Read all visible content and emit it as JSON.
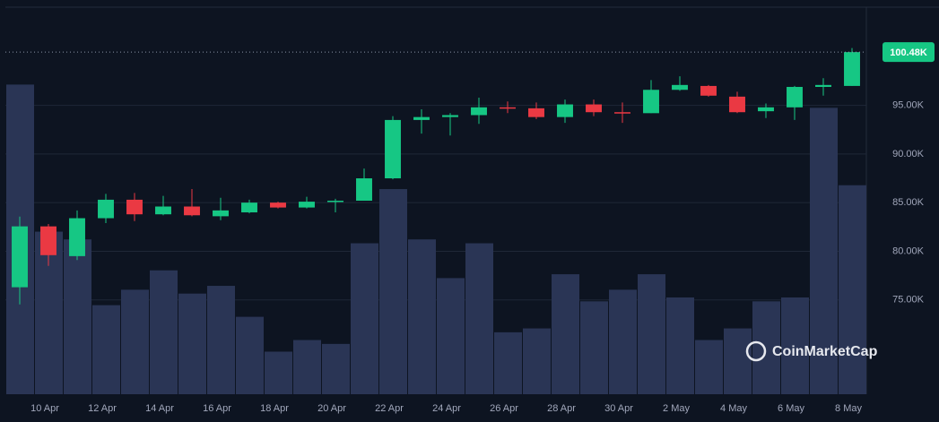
{
  "chart_data": {
    "type": "candlestick",
    "categories": [
      null,
      "10 Apr",
      null,
      "12 Apr",
      null,
      "14 Apr",
      null,
      "16 Apr",
      null,
      "18 Apr",
      null,
      "20 Apr",
      null,
      "22 Apr",
      null,
      "24 Apr",
      null,
      "26 Apr",
      null,
      "28 Apr",
      null,
      "30 Apr",
      null,
      "2 May",
      null,
      "4 May",
      null,
      "6 May",
      null,
      "8 May"
    ],
    "open": [
      76.3,
      82.56,
      79.5,
      83.4,
      85.3,
      83.8,
      84.6,
      83.6,
      84.0,
      85.0,
      84.5,
      85.1,
      85.2,
      87.5,
      93.5,
      93.8,
      94.0,
      94.8,
      94.7,
      93.8,
      95.1,
      94.3,
      94.2,
      96.6,
      97.0,
      95.9,
      94.4,
      94.8,
      96.9,
      97.0
    ],
    "high": [
      83.57,
      82.8,
      84.2,
      85.9,
      86.0,
      85.7,
      86.4,
      85.5,
      85.3,
      85.1,
      85.6,
      85.4,
      88.5,
      93.9,
      94.6,
      94.2,
      95.8,
      95.4,
      95.3,
      95.6,
      95.6,
      95.3,
      97.6,
      98.0,
      97.1,
      96.4,
      95.2,
      97.0,
      97.8,
      100.9
    ],
    "low": [
      74.54,
      78.5,
      79.1,
      82.9,
      83.1,
      83.7,
      83.6,
      83.2,
      83.9,
      84.4,
      84.4,
      84.0,
      85.2,
      87.4,
      92.1,
      91.9,
      93.1,
      94.2,
      93.6,
      93.2,
      93.9,
      93.2,
      94.2,
      96.5,
      95.9,
      94.2,
      93.7,
      93.5,
      96.0,
      97.0
    ],
    "close": [
      82.56,
      79.6,
      83.4,
      85.3,
      83.8,
      84.6,
      83.7,
      84.2,
      85.0,
      84.5,
      85.1,
      85.2,
      87.5,
      93.5,
      93.8,
      94.0,
      94.8,
      94.7,
      93.8,
      95.1,
      94.3,
      94.2,
      96.6,
      97.1,
      96.0,
      94.3,
      94.8,
      96.9,
      97.1,
      100.48
    ],
    "volume": [
      80,
      42,
      40,
      23,
      27,
      32,
      26,
      28,
      20,
      11,
      14,
      13,
      39,
      53,
      40,
      30,
      39,
      16,
      17,
      31,
      24,
      27,
      31,
      25,
      14,
      17,
      24,
      25,
      74,
      54
    ],
    "up_color": "#16c784",
    "down_color": "#ea3943",
    "volume_color": "#2a3555",
    "ylim": [
      65.3,
      105.1
    ],
    "yticks": [
      {
        "value": 75,
        "label": "75.00K"
      },
      {
        "value": 80,
        "label": "80.00K"
      },
      {
        "value": 85,
        "label": "85.00K"
      },
      {
        "value": 90,
        "label": "90.00K"
      },
      {
        "value": 95,
        "label": "95.00K"
      }
    ],
    "y2lim": [
      0,
      100
    ],
    "last_price": {
      "value": 100.48,
      "label": "100.48K"
    },
    "grid": true,
    "watermark": "CoinMarketCap"
  }
}
